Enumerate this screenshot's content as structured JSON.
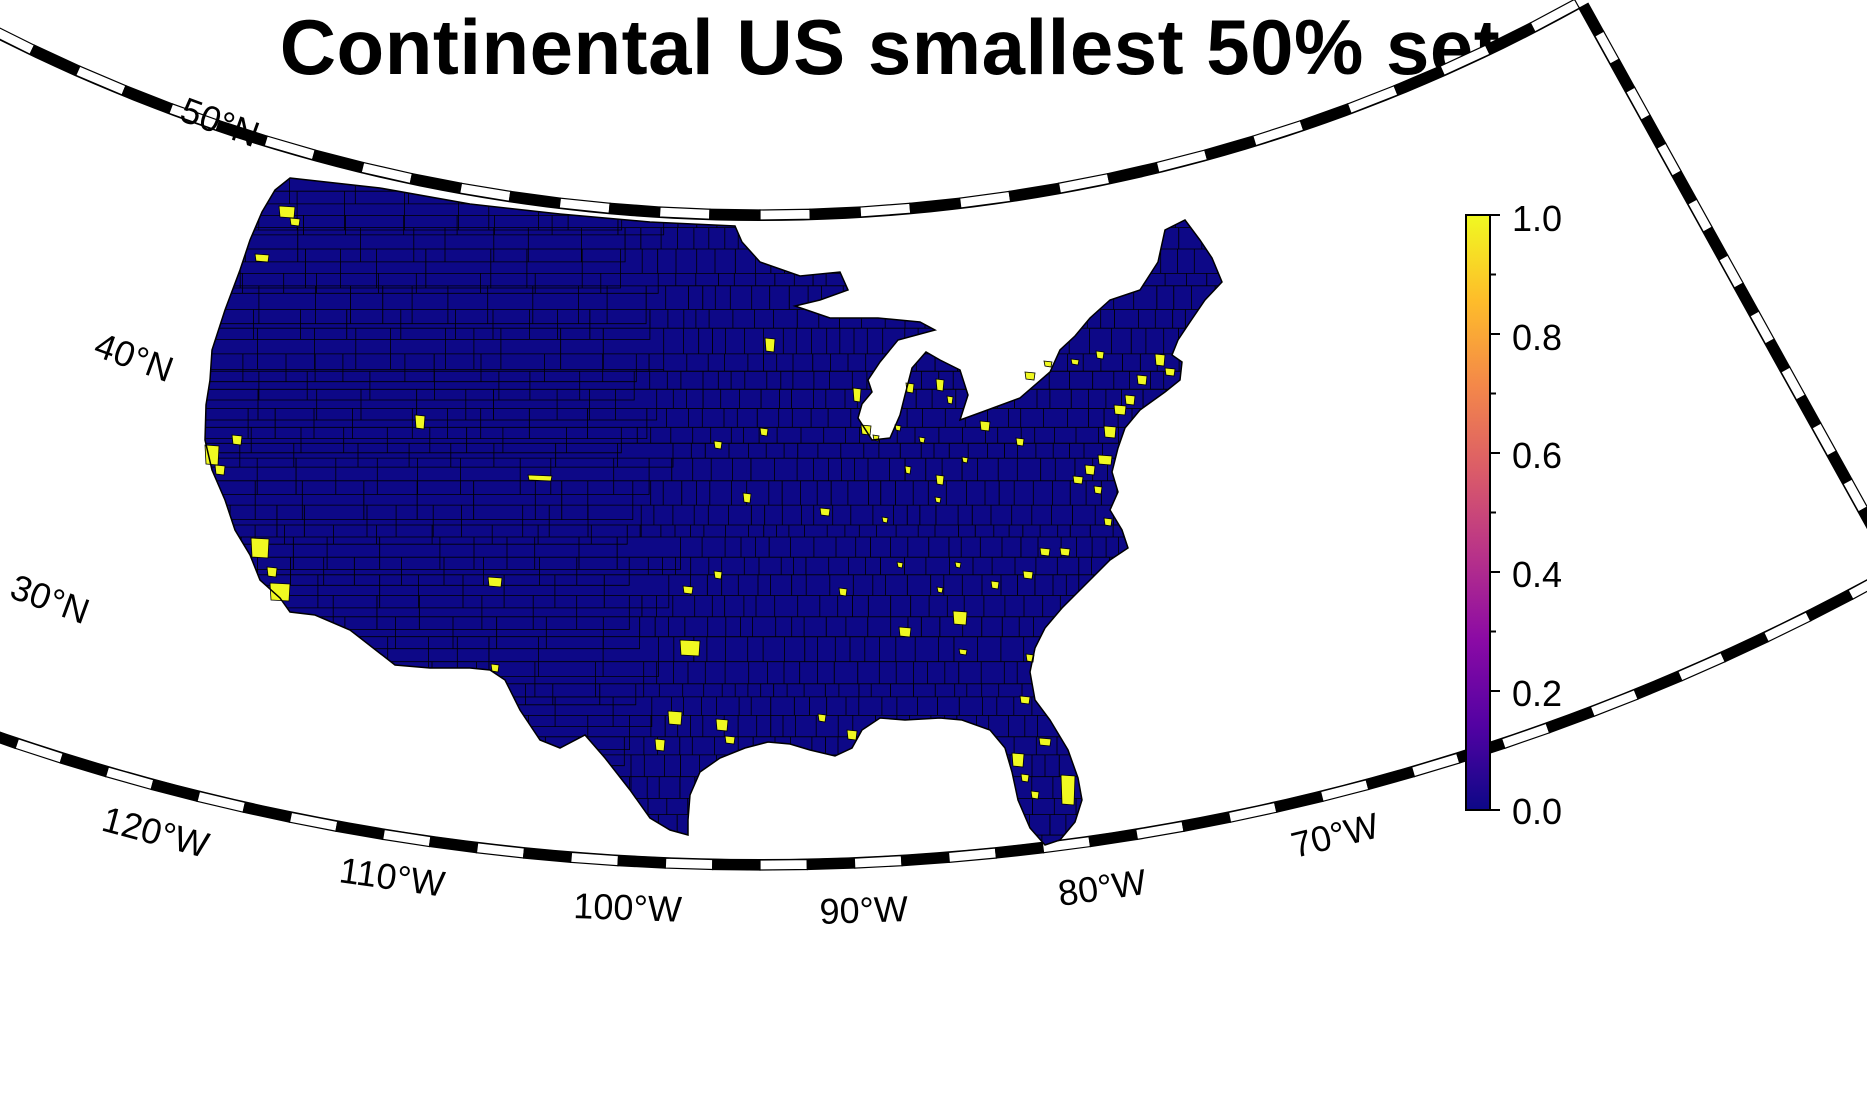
{
  "title": "Continental US smallest 50% set",
  "colors": {
    "background": "#ffffff",
    "land_base": "#0d0887",
    "selected": "#f0f921",
    "county_border": "#000000",
    "colormap": [
      "#0d0887",
      "#5302a3",
      "#8b0aa5",
      "#b83289",
      "#db5c68",
      "#f48849",
      "#febd2a",
      "#f0f921"
    ]
  },
  "map": {
    "projection": "conic",
    "latitude_labels": [
      "50°N",
      "40°N",
      "30°N"
    ],
    "longitude_labels": [
      "120°W",
      "110°W",
      "100°W",
      "90°W",
      "80°W",
      "70°W"
    ],
    "frame": "alternating black-white ticks"
  },
  "colorbar": {
    "tick_labels": [
      "1.0",
      "0.8",
      "0.6",
      "0.4",
      "0.2",
      "0.0"
    ],
    "min": 0.0,
    "max": 1.0
  },
  "icons": [
    "map-frame",
    "colorbar"
  ]
}
